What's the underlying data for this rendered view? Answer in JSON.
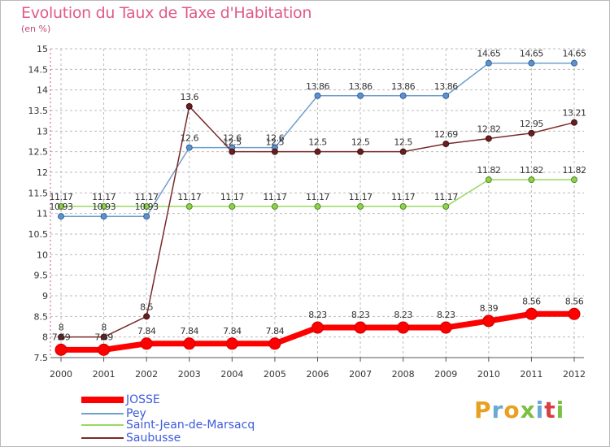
{
  "title": "Evolution du Taux de Taxe d'Habitation",
  "unit_label": "(en %)",
  "logo_text": "Proxiti",
  "logo_colors": [
    "#e8a020",
    "#6aa8d8",
    "#e8a020",
    "#7cc040",
    "#6aa8d8",
    "#d84040",
    "#7cc040"
  ],
  "chart_data": {
    "type": "line",
    "title": "Evolution du Taux de Taxe d'Habitation",
    "ylabel": "(en %)",
    "xlabel": "",
    "x": [
      "2000",
      "2001",
      "2002",
      "2003",
      "2004",
      "2005",
      "2006",
      "2007",
      "2008",
      "2009",
      "2010",
      "2011",
      "2012"
    ],
    "ylim": [
      7.5,
      15
    ],
    "yticks": [
      "7.5",
      "8",
      "8.5",
      "9",
      "9.5",
      "10",
      "10.5",
      "11",
      "11.5",
      "12",
      "12.5",
      "13",
      "13.5",
      "14",
      "14.5",
      "15"
    ],
    "grid": "horizontal dashed, vertical dashed",
    "legend_position": "bottom-left",
    "series": [
      {
        "name": "JOSSE",
        "color": "#ff0000",
        "values": [
          7.69,
          7.69,
          7.84,
          7.84,
          7.84,
          7.84,
          8.23,
          8.23,
          8.23,
          8.23,
          8.39,
          8.56,
          8.56
        ],
        "labels": [
          "7.69",
          "7.69",
          "7.84",
          "7.84",
          "7.84",
          "7.84",
          "8.23",
          "8.23",
          "8.23",
          "8.23",
          "8.39",
          "8.56",
          "8.56"
        ]
      },
      {
        "name": "Pey",
        "color": "#6e9fcf",
        "values": [
          10.93,
          10.93,
          10.93,
          12.6,
          12.6,
          12.6,
          13.86,
          13.86,
          13.86,
          13.86,
          14.65,
          14.65,
          14.65
        ],
        "labels": [
          "10.93",
          "10.93",
          "10.93",
          "12.6",
          "12.6",
          "12.6",
          "13.86",
          "13.86",
          "13.86",
          "13.86",
          "14.65",
          "14.65",
          "14.65"
        ]
      },
      {
        "name": "Saint-Jean-de-Marsacq",
        "color": "#8fd14f",
        "values": [
          11.17,
          11.17,
          11.17,
          11.17,
          11.17,
          11.17,
          11.17,
          11.17,
          11.17,
          11.17,
          11.82,
          11.82,
          11.82
        ],
        "labels": [
          "11.17",
          "11.17",
          "11.17",
          "11.17",
          "11.17",
          "11.17",
          "11.17",
          "11.17",
          "11.17",
          "11.17",
          "11.82",
          "11.82",
          "11.82"
        ]
      },
      {
        "name": "Saubusse",
        "color": "#7a2a2a",
        "values": [
          8,
          8,
          8.5,
          13.6,
          12.5,
          12.5,
          12.5,
          12.5,
          12.5,
          12.69,
          12.82,
          12.95,
          13.21
        ],
        "labels": [
          "8",
          "8",
          "8.5",
          "13.6",
          "12.5",
          "12.5",
          "12.5",
          "12.5",
          "12.5",
          "12.69",
          "12.82",
          "12.95",
          "13.21"
        ]
      }
    ]
  }
}
